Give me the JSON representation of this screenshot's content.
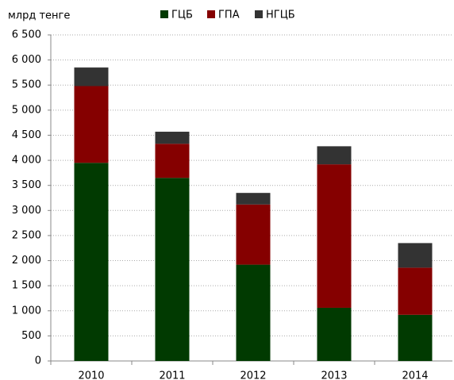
{
  "chart_data": {
    "type": "stacked_bar",
    "y_label": "млрд тенге",
    "categories": [
      "2010",
      "2011",
      "2012",
      "2013",
      "2014"
    ],
    "series": [
      {
        "name": "ГЦБ",
        "color": "#013a01",
        "values": [
          3950,
          3650,
          1920,
          1060,
          920
        ]
      },
      {
        "name": "ГПА",
        "color": "#850000",
        "values": [
          1530,
          680,
          1200,
          2860,
          940
        ]
      },
      {
        "name": "НГЦБ",
        "color": "#333333",
        "values": [
          370,
          240,
          230,
          360,
          490
        ]
      }
    ],
    "ylim": [
      0,
      6500
    ],
    "yticks": [
      0,
      500,
      {
        "value": 1000,
        "label": "1 000"
      },
      {
        "value": 1500,
        "label": "1 500"
      },
      {
        "value": 2000,
        "label": "2 000"
      },
      {
        "value": 2500,
        "label": "2 500"
      },
      {
        "value": 3000,
        "label": "3 000"
      },
      {
        "value": 3500,
        "label": "3 500"
      },
      {
        "value": 4000,
        "label": "4 000"
      },
      {
        "value": 4500,
        "label": "4 500"
      },
      {
        "value": 5000,
        "label": "5 000"
      },
      {
        "value": 5500,
        "label": "5 500"
      },
      {
        "value": 6000,
        "label": "6 000"
      },
      {
        "value": 6500,
        "label": "6 500"
      }
    ],
    "grid": true,
    "legend": "top"
  }
}
